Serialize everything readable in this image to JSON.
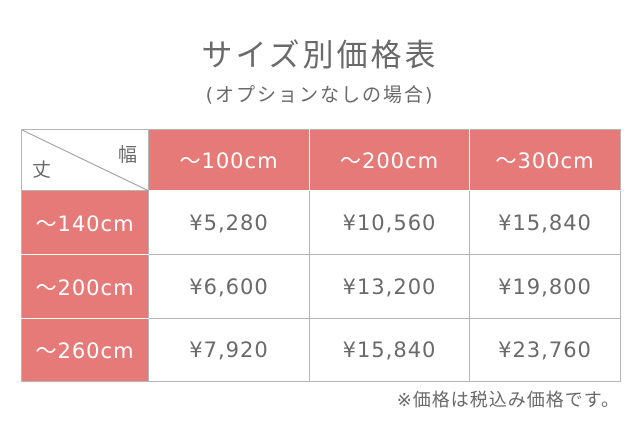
{
  "title": "サイズ別価格表",
  "subtitle": "(オプションなしの場合)",
  "table": {
    "corner": {
      "width_label": "幅",
      "height_label": "丈"
    },
    "columns": [
      "～100cm",
      "～200cm",
      "～300cm"
    ],
    "rows": [
      {
        "label": "～140cm",
        "prices": [
          "¥5,280",
          "¥10,560",
          "¥15,840"
        ]
      },
      {
        "label": "～200cm",
        "prices": [
          "¥6,600",
          "¥13,200",
          "¥19,800"
        ]
      },
      {
        "label": "～260cm",
        "prices": [
          "¥7,920",
          "¥15,840",
          "¥23,760"
        ]
      }
    ]
  },
  "note": "※価格は税込み価格です。",
  "colors": {
    "header_bg": "#e57a78",
    "text": "#6a6a6a",
    "grid": "#b5b5b5"
  }
}
